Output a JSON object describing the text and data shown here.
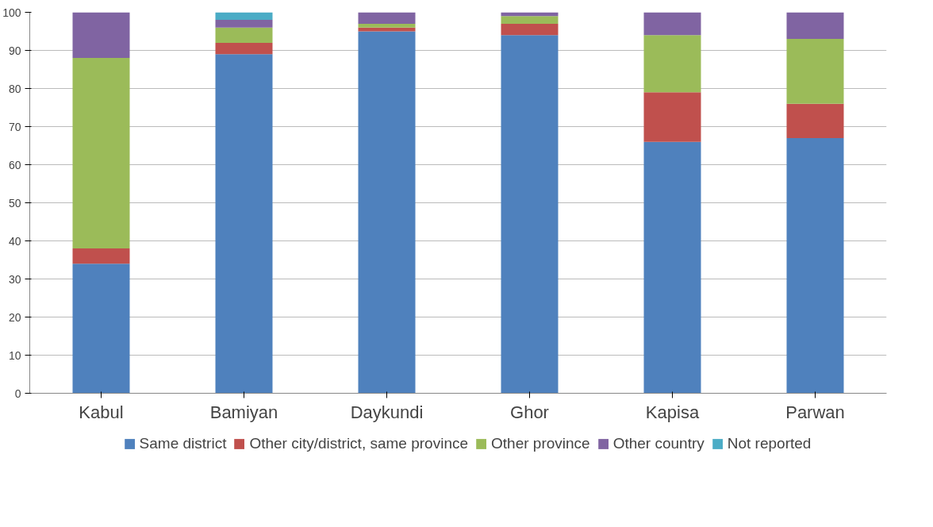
{
  "chart_data": {
    "type": "bar",
    "stacked": true,
    "categories": [
      "Kabul",
      "Bamiyan",
      "Daykundi",
      "Ghor",
      "Kapisa",
      "Parwan"
    ],
    "series": [
      {
        "name": "Same district",
        "color": "#4f81bd",
        "values": [
          34,
          89,
          95,
          94,
          66,
          67
        ]
      },
      {
        "name": "Other city/district, same province",
        "color": "#c0504d",
        "values": [
          4,
          3,
          1,
          3,
          13,
          9
        ]
      },
      {
        "name": "Other province",
        "color": "#9bbb59",
        "values": [
          50,
          4,
          1,
          2,
          15,
          17
        ]
      },
      {
        "name": "Other country",
        "color": "#8064a2",
        "values": [
          12,
          2,
          3,
          1,
          6,
          7
        ]
      },
      {
        "name": "Not reported",
        "color": "#4bacc6",
        "values": [
          0,
          2,
          0,
          0,
          0,
          0
        ]
      }
    ],
    "ylim": [
      0,
      100
    ],
    "yticks": [
      0,
      10,
      20,
      30,
      40,
      50,
      60,
      70,
      80,
      90,
      100
    ],
    "grid": "y",
    "legend": "bottom"
  }
}
